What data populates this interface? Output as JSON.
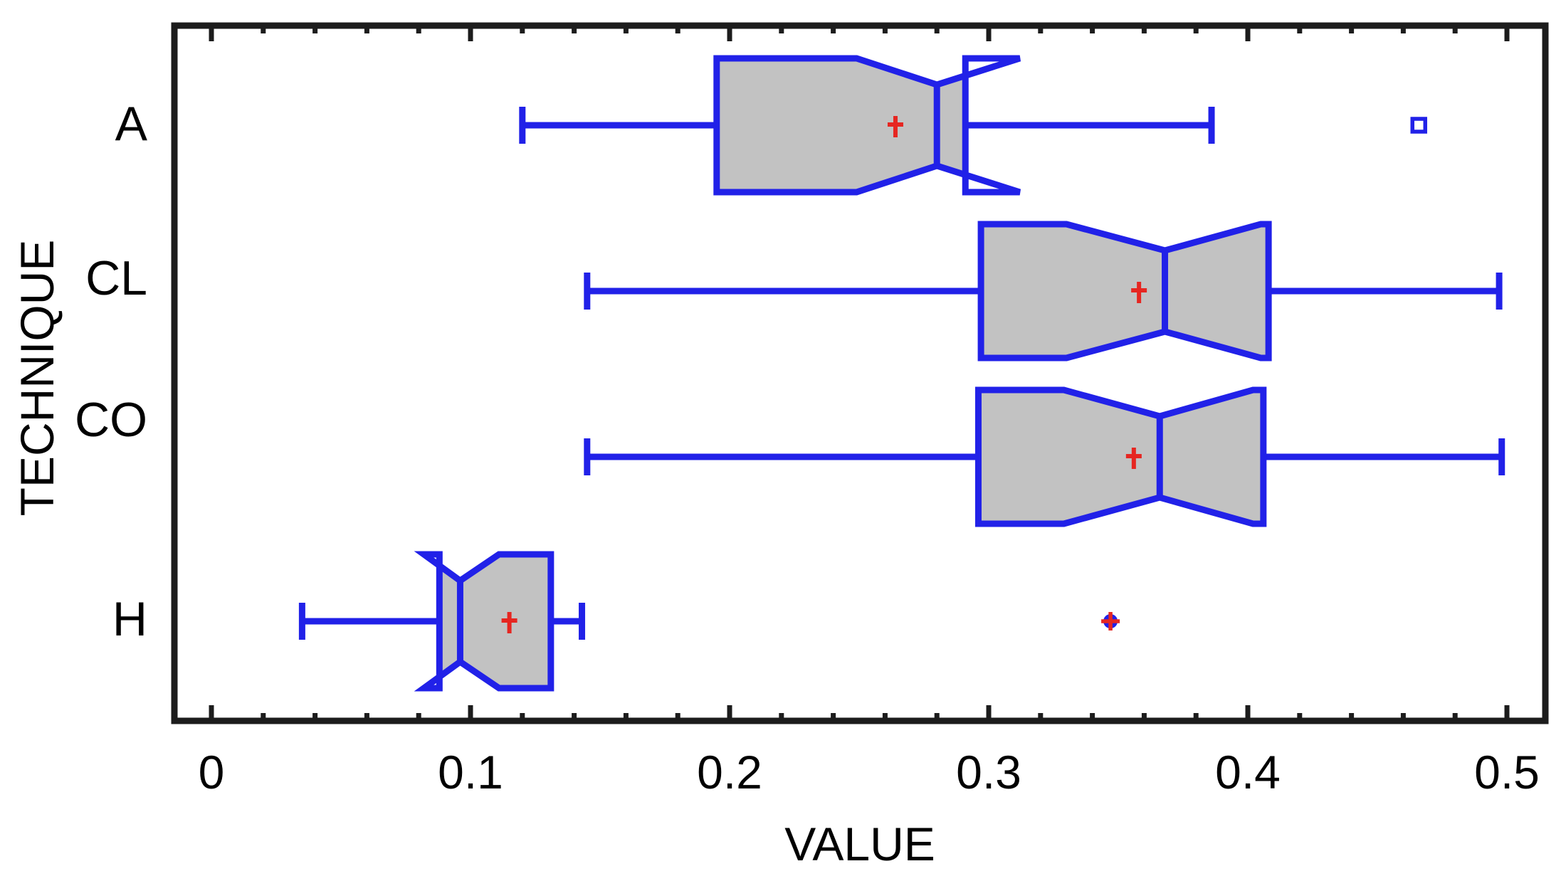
{
  "chart_data": {
    "type": "box",
    "orientation": "horizontal",
    "notched": true,
    "title": "",
    "xlabel": "VALUE",
    "ylabel": "TECHNIQUE",
    "categories": [
      "A",
      "CL",
      "CO",
      "H"
    ],
    "x_ticks": [
      0,
      0.1,
      0.2,
      0.3,
      0.4,
      0.5
    ],
    "x_tick_labels": [
      "0",
      "0.1",
      "0.2",
      "0.3",
      "0.4",
      "0.5"
    ],
    "x_minor_tick_step": 0.02,
    "xlim": [
      -0.014,
      0.515
    ],
    "grid": false,
    "legend": "none",
    "series": [
      {
        "name": "A",
        "whisker_low": 0.12,
        "q1": 0.195,
        "notch_low": 0.249,
        "median": 0.28,
        "notch_high": 0.312,
        "q3": 0.291,
        "whisker_high": 0.386,
        "mean": 0.264,
        "outliers": [
          {
            "value": 0.466,
            "marker": "open-square"
          }
        ]
      },
      {
        "name": "CL",
        "whisker_low": 0.145,
        "q1": 0.297,
        "notch_low": 0.33,
        "median": 0.368,
        "notch_high": 0.405,
        "q3": 0.408,
        "whisker_high": 0.497,
        "mean": 0.358,
        "outliers": []
      },
      {
        "name": "CO",
        "whisker_low": 0.145,
        "q1": 0.296,
        "notch_low": 0.329,
        "median": 0.366,
        "notch_high": 0.402,
        "q3": 0.406,
        "whisker_high": 0.498,
        "mean": 0.356,
        "outliers": []
      },
      {
        "name": "H",
        "whisker_low": 0.035,
        "q1": 0.088,
        "notch_low": 0.082,
        "median": 0.096,
        "notch_high": 0.111,
        "q3": 0.131,
        "whisker_high": 0.143,
        "mean": 0.115,
        "outliers": [
          {
            "value": 0.347,
            "marker": "filled-circle-red-plus"
          }
        ]
      }
    ],
    "colors": {
      "box_line": "#2121e8",
      "box_fill": "#c2c2c2",
      "mean_marker": "#e62621",
      "axis": "#1c1c1c",
      "text": "#000000"
    }
  }
}
